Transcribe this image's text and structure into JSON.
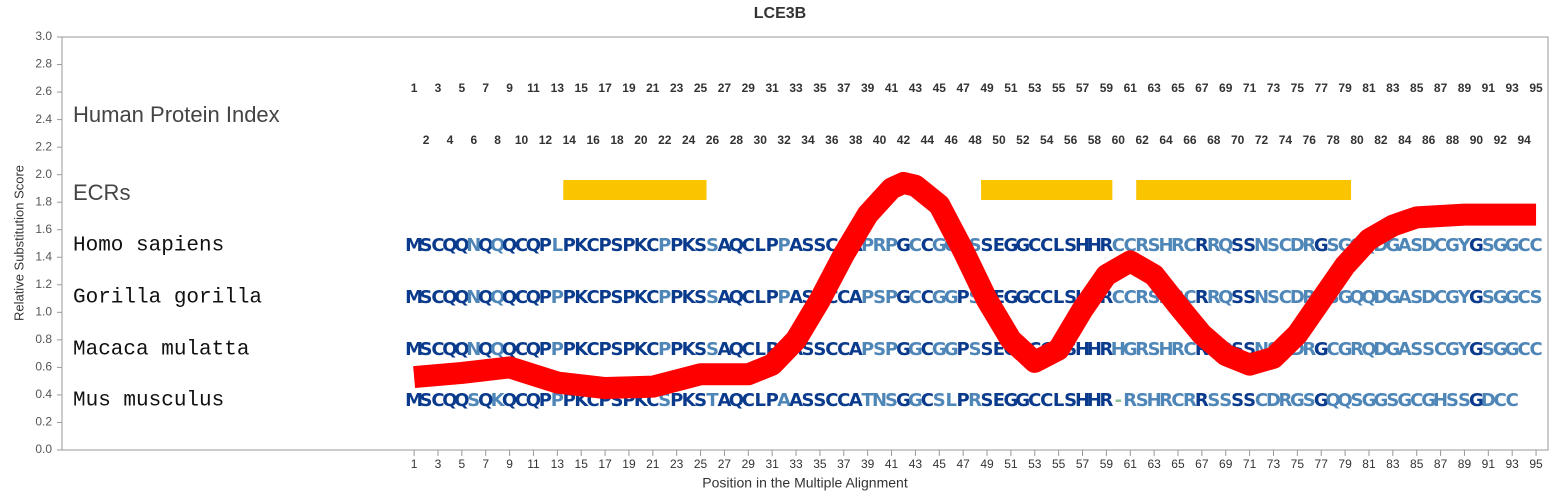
{
  "chart_data": {
    "type": "line",
    "title": "LCE3B",
    "x_label": "Position in the Multiple Alignment",
    "y_label": "Relative Substitution Score",
    "xlim": [
      -28.5,
      96
    ],
    "ylim": [
      0,
      3
    ],
    "yticks": [
      {
        "value": 0,
        "label": "0.0"
      },
      0.2,
      0.4,
      0.6,
      0.8,
      {
        "value": 1,
        "label": "1.0"
      },
      1.2,
      1.4,
      1.6,
      1.8,
      {
        "value": 2,
        "label": "2.0"
      },
      2.2,
      2.4,
      2.6,
      2.8,
      {
        "value": 3,
        "label": "3.0"
      }
    ],
    "xticks": [
      1,
      3,
      5,
      7,
      9,
      11,
      13,
      15,
      17,
      19,
      21,
      23,
      25,
      27,
      29,
      31,
      33,
      35,
      37,
      39,
      41,
      43,
      45,
      47,
      49,
      51,
      53,
      55,
      57,
      59,
      61,
      63,
      65,
      67,
      69,
      71,
      73,
      75,
      77,
      79,
      81,
      83,
      85,
      87,
      89,
      91,
      93,
      95
    ],
    "series": [
      {
        "color": "#ff0000",
        "x": [
          1,
          5,
          9,
          13,
          17,
          21,
          25,
          29,
          31,
          33,
          35,
          37,
          39,
          41,
          42,
          43,
          45,
          47,
          49,
          51,
          53,
          55,
          57,
          59,
          61,
          63,
          65,
          67,
          69,
          71,
          73,
          75,
          77,
          79,
          81,
          83,
          85,
          89,
          95
        ],
        "values": [
          0.53,
          0.56,
          0.6,
          0.49,
          0.45,
          0.46,
          0.55,
          0.55,
          0.62,
          0.8,
          1.09,
          1.42,
          1.71,
          1.9,
          1.94,
          1.92,
          1.78,
          1.45,
          1.09,
          0.8,
          0.64,
          0.73,
          1.02,
          1.27,
          1.37,
          1.27,
          1.05,
          0.84,
          0.69,
          0.62,
          0.67,
          0.84,
          1.09,
          1.34,
          1.53,
          1.63,
          1.69,
          1.71,
          1.71
        ]
      }
    ],
    "tracks": {
      "index_label": "Human Protein Index",
      "protein_index": [
        1,
        2,
        3,
        4,
        5,
        6,
        7,
        8,
        9,
        10,
        11,
        12,
        13,
        14,
        15,
        16,
        17,
        18,
        19,
        20,
        21,
        22,
        23,
        24,
        25,
        26,
        27,
        28,
        29,
        30,
        31,
        32,
        33,
        34,
        35,
        36,
        37,
        38,
        39,
        40,
        41,
        42,
        43,
        44,
        45,
        46,
        47,
        48,
        49,
        50,
        51,
        52,
        53,
        54,
        55,
        56,
        57,
        58,
        59,
        60,
        61,
        62,
        63,
        64,
        65,
        66,
        67,
        68,
        69,
        70,
        71,
        72,
        73,
        74,
        75,
        76,
        77,
        78,
        79,
        80,
        81,
        82,
        83,
        84,
        85,
        86,
        87,
        88,
        89,
        90,
        91,
        92,
        93,
        94,
        95
      ],
      "ecr_label": "ECRs",
      "ecr_color": "#fbc400",
      "ecrs": [
        {
          "start": 14,
          "end": 25
        },
        {
          "start": 49,
          "end": 59
        },
        {
          "start": 62,
          "end": 79
        }
      ]
    },
    "alignment": [
      {
        "species": "Homo sapiens",
        "sequence": "MSCQQNQQQCQPLPKCPSPKCPPKSSAQCLPPASSCCAPRPGCCGGPSSEGGCCLSHHRCCRSHRCRRQSSNSCDRGSGQQDGASDCGYGSGGCC"
      },
      {
        "species": "Gorilla gorilla",
        "sequence": "MSCQQNQQQCQPPPKCPSPKCPPKSSAQCLPPASSCCAPSPGCCGGPSSEGGCCLSHHRCCRSHRCRRQSSNSCDRGSGQQDGASDCGYGSGGCS"
      },
      {
        "species": "Macaca mulatta",
        "sequence": "MSCQQNQQQCQPPPKCPSPKCPPKSSAQCLPPASSCCAPSPGGCGGPSSEGGCCLSHHRHGRSHRCRRQSSNSCDRGCGRQDGASSCGYGSGGCC"
      },
      {
        "species": "Mus musculus",
        "sequence": "MSCQQSQKQCQPPPKCPSPKCSPKSTAQCLPAASSCCATNSGGCSLPRSEGGCCLSHHR-RSHRCRRSSSSCDRGSGQQSGGSGCGHSSGDCC"
      }
    ]
  }
}
